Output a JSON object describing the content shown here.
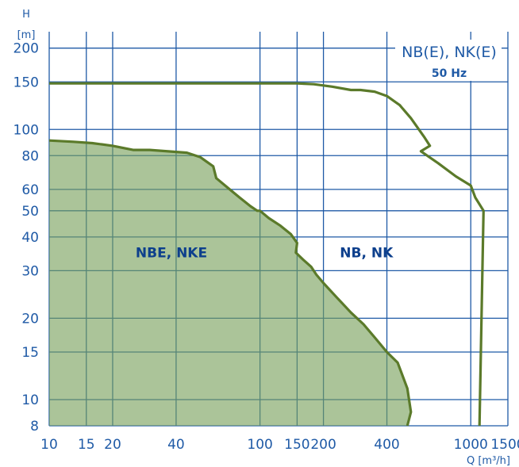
{
  "chart_data": {
    "type": "area",
    "title": "NB(E), NK(E)",
    "subtitle": "50 Hz",
    "x_axis": {
      "label": "Q [m³/h]",
      "scale": "log",
      "range": [
        10,
        1500
      ],
      "ticks": [
        "10",
        "15",
        "20",
        "40",
        "100",
        "150",
        "200",
        "400",
        "1000",
        "1500"
      ]
    },
    "y_axis": {
      "label_top": "H",
      "label_unit": "[m]",
      "scale": "log",
      "range": [
        8,
        230
      ],
      "ticks": [
        "8",
        "10",
        "15",
        "20",
        "30",
        "40",
        "50",
        "60",
        "80",
        "100",
        "150",
        "200"
      ]
    },
    "grid": true,
    "series": [
      {
        "name": "NBE, NKE",
        "style": "filled",
        "x": [
          10,
          13,
          16,
          20,
          25,
          30,
          45,
          52,
          60,
          62,
          70,
          80,
          90,
          97,
          100,
          110,
          125,
          140,
          150,
          148,
          160,
          175,
          185,
          200,
          230,
          270,
          310,
          350,
          400,
          450,
          500,
          520,
          500
        ],
        "y": [
          91,
          90,
          89,
          87,
          84,
          84,
          82,
          79,
          73,
          66,
          61,
          56,
          52,
          50,
          50,
          47,
          44,
          41,
          38,
          35,
          33,
          31,
          29,
          27,
          24,
          21,
          19,
          17,
          15,
          13.7,
          11,
          9,
          7.5
        ]
      },
      {
        "name": "NB(E), NK(E)",
        "style": "line",
        "x": [
          10,
          50,
          100,
          150,
          180,
          220,
          270,
          300,
          350,
          400,
          460,
          520,
          600,
          640,
          580,
          700,
          850,
          1000,
          1050,
          1150,
          1100
        ],
        "y": [
          148,
          148,
          148,
          148,
          147,
          144,
          140,
          140,
          138,
          133,
          123,
          110,
          94,
          87,
          83,
          75,
          67,
          62,
          56,
          50,
          7.5
        ]
      }
    ],
    "annotations": [
      {
        "text": "NBE, NKE",
        "x": 38,
        "y": 35
      },
      {
        "text": "NB, NK",
        "x": 320,
        "y": 35
      }
    ]
  }
}
